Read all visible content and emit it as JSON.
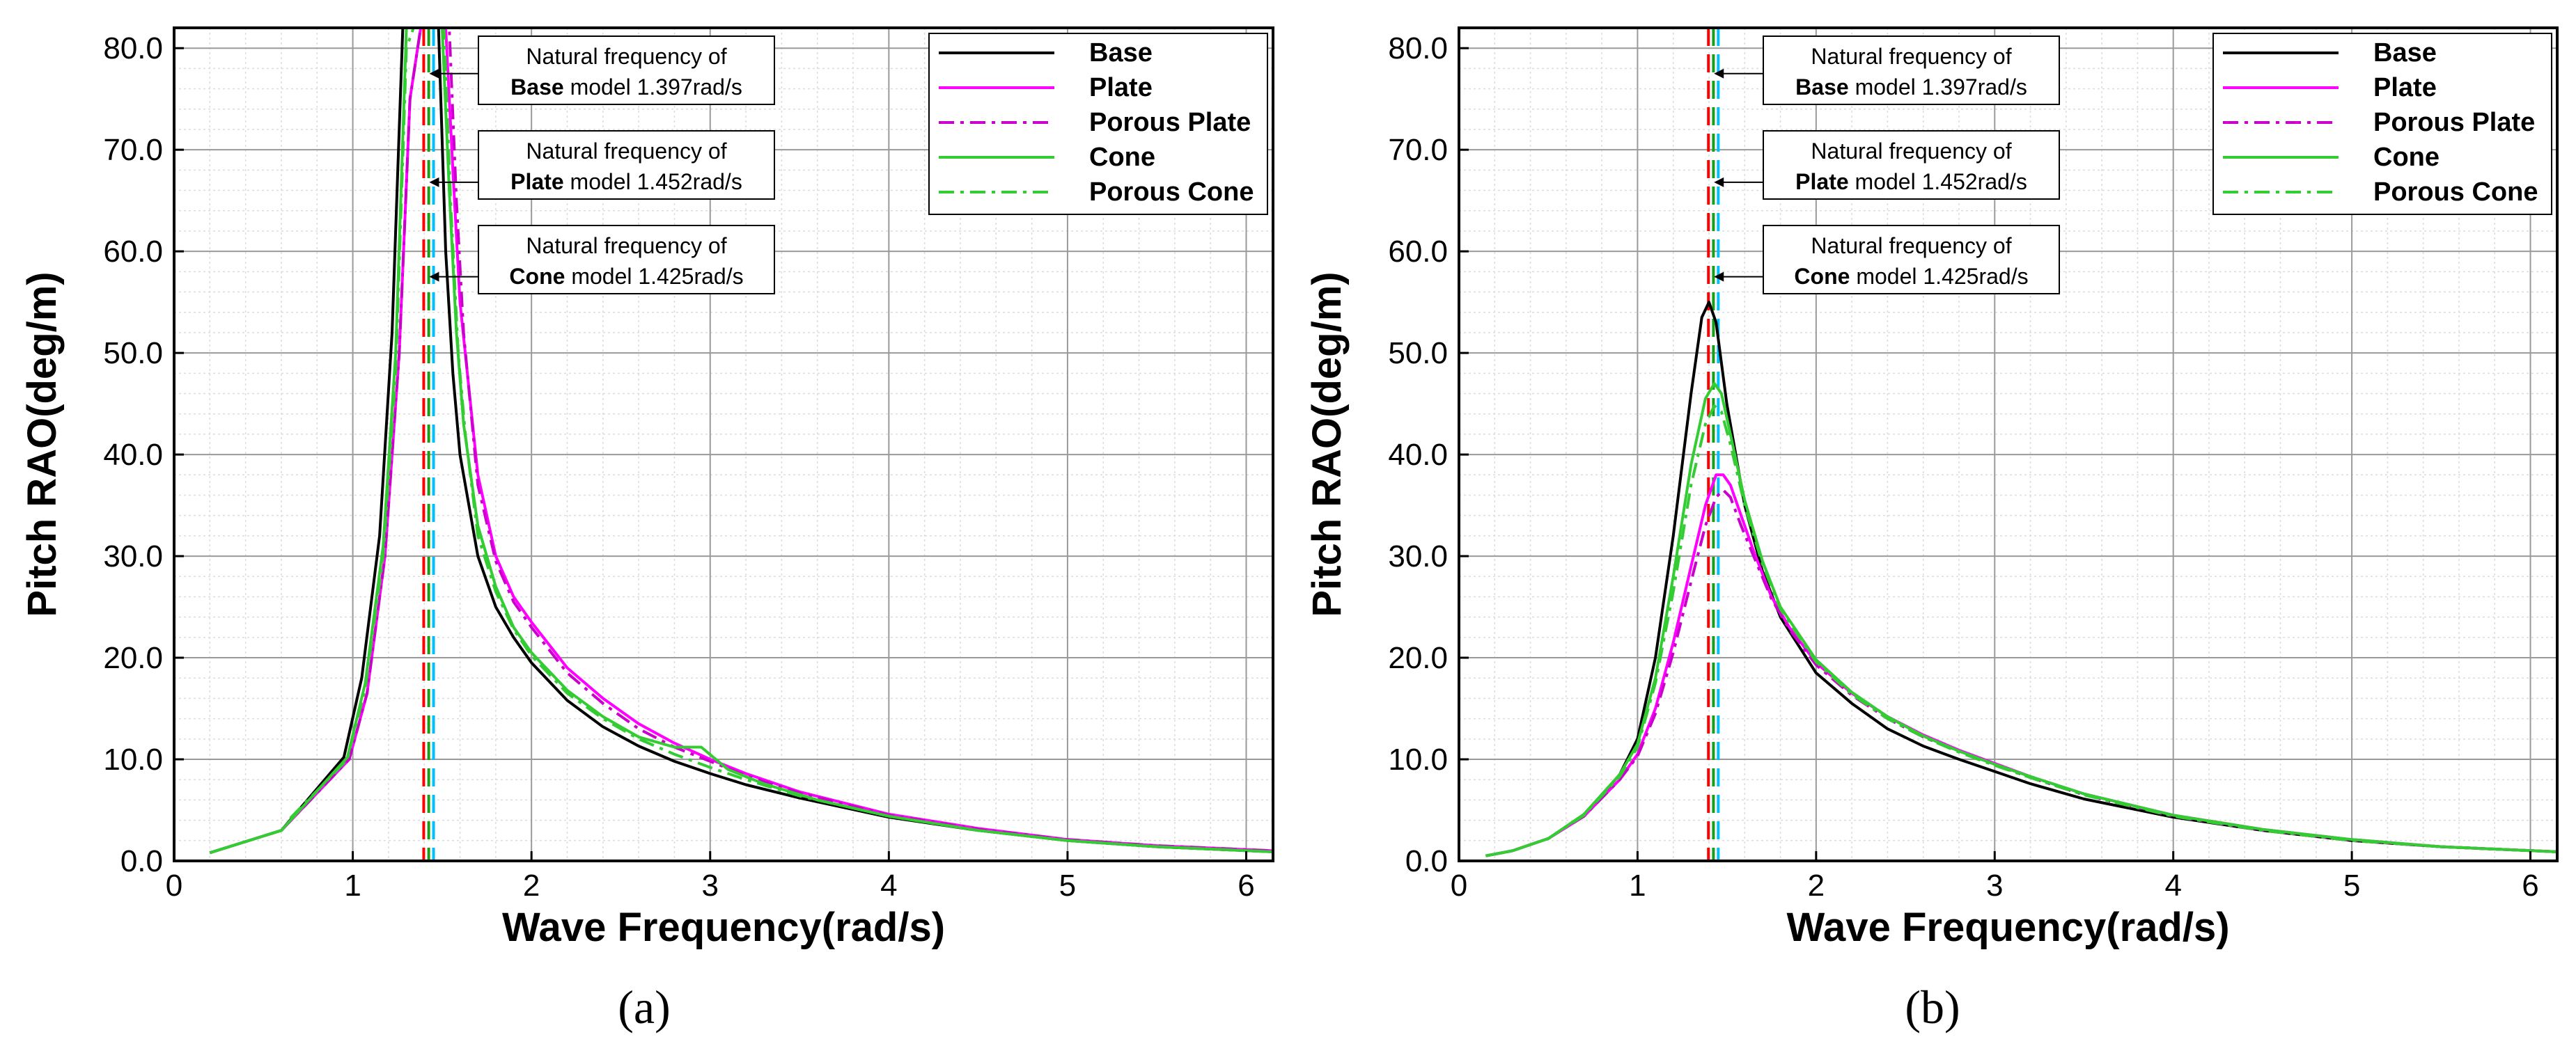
{
  "chart_data": [
    {
      "type": "line",
      "panel_label": "(a)",
      "xlabel": "Wave Frequency(rad/s)",
      "ylabel": "Pitch RAO(deg/m)",
      "xlim": [
        0,
        6.15
      ],
      "ylim": [
        0,
        82
      ],
      "xticks": [
        "0",
        "1",
        "2",
        "3",
        "4",
        "5",
        "6"
      ],
      "xtick_values": [
        0,
        1,
        2,
        3,
        4,
        5,
        6
      ],
      "yticks": [
        "0.0",
        "10.0",
        "20.0",
        "30.0",
        "40.0",
        "50.0",
        "60.0",
        "70.0",
        "80.0"
      ],
      "ytick_values": [
        0,
        10,
        20,
        30,
        40,
        50,
        60,
        70,
        80
      ],
      "grid": true,
      "legend_position": "top-right",
      "series": [
        {
          "name": "Base",
          "color": "#000000",
          "dash": "solid",
          "x": [
            0.2,
            0.6,
            0.95,
            1.05,
            1.15,
            1.22,
            1.28,
            1.32,
            1.36,
            1.397,
            1.44,
            1.48,
            1.52,
            1.56,
            1.6,
            1.7,
            1.8,
            1.9,
            2.0,
            2.2,
            2.4,
            2.6,
            2.8,
            3.0,
            3.2,
            3.5,
            4.0,
            4.5,
            5.0,
            5.5,
            6.15
          ],
          "y": [
            0.8,
            3.0,
            10.2,
            18.0,
            32.0,
            52.0,
            82.0,
            82.0,
            82.0,
            82.0,
            82.0,
            82.0,
            60.0,
            48.0,
            40.0,
            30.0,
            25.0,
            22.0,
            19.5,
            15.8,
            13.2,
            11.3,
            9.8,
            8.6,
            7.5,
            6.2,
            4.3,
            3.0,
            2.0,
            1.4,
            0.9
          ]
        },
        {
          "name": "Plate",
          "color": "#ff00ff",
          "dash": "solid",
          "x": [
            0.6,
            0.98,
            1.08,
            1.18,
            1.26,
            1.32,
            1.38,
            1.42,
            1.452,
            1.48,
            1.52,
            1.56,
            1.6,
            1.7,
            1.8,
            1.9,
            2.0,
            2.2,
            2.4,
            2.6,
            2.8,
            3.0,
            3.2,
            3.5,
            4.0,
            4.5,
            5.0,
            5.5,
            6.15
          ],
          "y": [
            3.0,
            10.0,
            16.5,
            30.0,
            50.0,
            75.0,
            82.0,
            82.0,
            82.0,
            82.0,
            82.0,
            68.0,
            55.0,
            38.0,
            30.0,
            26.0,
            23.5,
            19.0,
            16.0,
            13.5,
            11.6,
            10.0,
            8.6,
            6.8,
            4.6,
            3.2,
            2.1,
            1.5,
            1.0
          ]
        },
        {
          "name": "Porous Plate",
          "color": "#cc00cc",
          "dash": "dashdot",
          "x": [
            0.6,
            0.98,
            1.08,
            1.18,
            1.26,
            1.32,
            1.38,
            1.42,
            1.46,
            1.5,
            1.54,
            1.58,
            1.62,
            1.7,
            1.8,
            1.9,
            2.0,
            2.2,
            2.4,
            2.6,
            2.8,
            3.0,
            3.2,
            3.5,
            4.0,
            4.5,
            5.0,
            5.5,
            6.15
          ],
          "y": [
            3.0,
            10.0,
            16.5,
            30.0,
            50.0,
            75.0,
            82.0,
            82.0,
            82.0,
            82.0,
            82.0,
            65.0,
            52.0,
            37.0,
            29.5,
            25.5,
            23.0,
            18.5,
            15.5,
            13.0,
            11.2,
            9.8,
            8.4,
            6.7,
            4.5,
            3.1,
            2.1,
            1.5,
            1.0
          ]
        },
        {
          "name": "Cone",
          "color": "#33cc33",
          "dash": "solid",
          "x": [
            0.2,
            0.6,
            0.97,
            1.07,
            1.17,
            1.24,
            1.3,
            1.34,
            1.38,
            1.425,
            1.46,
            1.5,
            1.54,
            1.58,
            1.62,
            1.7,
            1.8,
            1.9,
            2.0,
            2.2,
            2.4,
            2.6,
            2.8,
            2.95,
            3.1,
            3.3,
            3.6,
            4.0,
            4.5,
            5.0,
            5.5,
            6.15
          ],
          "y": [
            0.8,
            3.0,
            10.2,
            17.5,
            31.0,
            50.0,
            82.0,
            82.0,
            82.0,
            82.0,
            82.0,
            82.0,
            66.0,
            52.0,
            43.0,
            33.0,
            27.0,
            23.0,
            20.5,
            16.8,
            14.2,
            12.2,
            11.2,
            11.2,
            9.0,
            7.6,
            6.0,
            4.4,
            3.0,
            2.0,
            1.4,
            0.9
          ]
        },
        {
          "name": "Porous Cone",
          "color": "#33cc33",
          "dash": "dashdot",
          "x": [
            0.65,
            0.97,
            1.07,
            1.17,
            1.24,
            1.3,
            1.34,
            1.38,
            1.43,
            1.47,
            1.51,
            1.55,
            1.59,
            1.63,
            1.7,
            1.8,
            1.9,
            2.0,
            2.2,
            2.4,
            2.6,
            2.8,
            3.0,
            3.2,
            3.5,
            4.0,
            4.5,
            5.0,
            5.5,
            6.15
          ],
          "y": [
            4.2,
            10.0,
            17.0,
            30.0,
            48.0,
            80.0,
            82.0,
            82.0,
            82.0,
            82.0,
            82.0,
            64.0,
            50.0,
            42.0,
            32.0,
            26.5,
            22.8,
            20.2,
            16.5,
            14.0,
            12.0,
            10.5,
            9.2,
            8.0,
            6.4,
            4.4,
            3.0,
            2.0,
            1.4,
            0.9
          ]
        }
      ],
      "vlines": [
        {
          "x": 1.397,
          "color": "#ff0000"
        },
        {
          "x": 1.425,
          "color": "#1a9e1a"
        },
        {
          "x": 1.452,
          "color": "#00bfff"
        }
      ],
      "annotations": [
        {
          "line1": "Natural frequency of",
          "bold": "Base",
          "rest": " model 1.397rad/s",
          "arrow_y": 77.5
        },
        {
          "line1": "Natural frequency of",
          "bold": "Plate",
          "rest": " model 1.452rad/s",
          "arrow_y": 66.8
        },
        {
          "line1": "Natural frequency of",
          "bold": "Cone",
          "rest": " model 1.425rad/s",
          "arrow_y": 57.5
        }
      ]
    },
    {
      "type": "line",
      "panel_label": "(b)",
      "xlabel": "Wave Frequency(rad/s)",
      "ylabel": "Pitch RAO(deg/m)",
      "xlim": [
        0,
        6.15
      ],
      "ylim": [
        0,
        82
      ],
      "xticks": [
        "0",
        "1",
        "2",
        "3",
        "4",
        "5",
        "6"
      ],
      "xtick_values": [
        0,
        1,
        2,
        3,
        4,
        5,
        6
      ],
      "yticks": [
        "0.0",
        "10.0",
        "20.0",
        "30.0",
        "40.0",
        "50.0",
        "60.0",
        "70.0",
        "80.0"
      ],
      "ytick_values": [
        0,
        10,
        20,
        30,
        40,
        50,
        60,
        70,
        80
      ],
      "grid": true,
      "legend_position": "top-right",
      "series": [
        {
          "name": "Base",
          "color": "#000000",
          "dash": "solid",
          "x": [
            0.15,
            0.3,
            0.5,
            0.7,
            0.9,
            1.0,
            1.1,
            1.2,
            1.3,
            1.36,
            1.4,
            1.44,
            1.5,
            1.6,
            1.7,
            1.8,
            2.0,
            2.2,
            2.4,
            2.6,
            2.8,
            3.0,
            3.2,
            3.5,
            4.0,
            4.5,
            5.0,
            5.5,
            6.15
          ],
          "y": [
            0.5,
            1.0,
            2.2,
            4.5,
            8.5,
            12.0,
            20.0,
            32.0,
            46.0,
            53.5,
            55.0,
            53.0,
            45.0,
            35.0,
            28.5,
            24.0,
            18.5,
            15.5,
            13.0,
            11.3,
            10.0,
            8.8,
            7.6,
            6.1,
            4.3,
            3.0,
            2.0,
            1.4,
            0.9
          ]
        },
        {
          "name": "Plate",
          "color": "#ff00ff",
          "dash": "solid",
          "x": [
            0.15,
            0.3,
            0.5,
            0.7,
            0.9,
            1.0,
            1.1,
            1.2,
            1.3,
            1.38,
            1.44,
            1.48,
            1.52,
            1.58,
            1.65,
            1.75,
            1.85,
            2.0,
            2.2,
            2.4,
            2.6,
            2.8,
            3.0,
            3.2,
            3.5,
            4.0,
            4.5,
            5.0,
            5.5,
            6.15
          ],
          "y": [
            0.5,
            1.0,
            2.2,
            4.4,
            8.0,
            10.5,
            15.0,
            21.5,
            29.0,
            35.0,
            38.0,
            38.0,
            37.0,
            34.0,
            30.5,
            26.0,
            23.0,
            19.5,
            16.5,
            14.2,
            12.4,
            10.9,
            9.6,
            8.3,
            6.6,
            4.5,
            3.1,
            2.1,
            1.4,
            0.9
          ]
        },
        {
          "name": "Porous Plate",
          "color": "#cc00cc",
          "dash": "dashdot",
          "x": [
            0.15,
            0.3,
            0.5,
            0.7,
            0.9,
            1.0,
            1.1,
            1.2,
            1.3,
            1.38,
            1.44,
            1.48,
            1.52,
            1.58,
            1.65,
            1.75,
            1.85,
            2.0,
            2.2,
            2.4,
            2.6,
            2.8,
            3.0,
            3.2,
            3.5,
            4.0,
            4.5,
            5.0,
            5.5,
            6.15
          ],
          "y": [
            0.5,
            1.0,
            2.2,
            4.4,
            8.0,
            10.3,
            14.5,
            20.5,
            27.5,
            33.0,
            35.8,
            36.5,
            35.8,
            33.0,
            30.0,
            25.8,
            22.8,
            19.3,
            16.3,
            14.0,
            12.2,
            10.8,
            9.5,
            8.2,
            6.5,
            4.4,
            3.0,
            2.0,
            1.4,
            0.9
          ]
        },
        {
          "name": "Cone",
          "color": "#33cc33",
          "dash": "solid",
          "x": [
            0.15,
            0.3,
            0.5,
            0.7,
            0.9,
            1.0,
            1.1,
            1.2,
            1.3,
            1.38,
            1.43,
            1.47,
            1.52,
            1.6,
            1.7,
            1.8,
            2.0,
            2.2,
            2.4,
            2.6,
            2.8,
            3.0,
            3.2,
            3.5,
            4.0,
            4.5,
            5.0,
            5.5,
            6.15
          ],
          "y": [
            0.5,
            1.0,
            2.2,
            4.6,
            8.5,
            11.5,
            18.0,
            28.0,
            39.0,
            45.5,
            47.0,
            46.0,
            42.0,
            35.5,
            29.5,
            25.0,
            19.8,
            16.6,
            14.2,
            12.3,
            10.8,
            9.5,
            8.3,
            6.6,
            4.5,
            3.1,
            2.1,
            1.4,
            0.9
          ]
        },
        {
          "name": "Porous Cone",
          "color": "#33cc33",
          "dash": "dashdot",
          "x": [
            0.15,
            0.3,
            0.5,
            0.7,
            0.9,
            1.0,
            1.1,
            1.2,
            1.3,
            1.38,
            1.43,
            1.47,
            1.52,
            1.6,
            1.7,
            1.8,
            2.0,
            2.2,
            2.4,
            2.6,
            2.8,
            3.0,
            3.2,
            3.5,
            4.0,
            4.5,
            5.0,
            5.5,
            6.15
          ],
          "y": [
            0.5,
            1.0,
            2.2,
            4.5,
            8.3,
            11.2,
            17.5,
            26.5,
            37.0,
            43.0,
            44.8,
            44.2,
            41.0,
            35.0,
            29.2,
            24.8,
            19.6,
            16.4,
            14.0,
            12.2,
            10.7,
            9.4,
            8.2,
            6.5,
            4.4,
            3.0,
            2.0,
            1.4,
            0.9
          ]
        }
      ],
      "vlines": [
        {
          "x": 1.397,
          "color": "#ff0000"
        },
        {
          "x": 1.425,
          "color": "#1a9e1a"
        },
        {
          "x": 1.452,
          "color": "#00bfff"
        }
      ],
      "annotations": [
        {
          "line1": "Natural frequency of",
          "bold": "Base",
          "rest": " model 1.397rad/s",
          "arrow_y": 77.5
        },
        {
          "line1": "Natural frequency of",
          "bold": "Plate",
          "rest": " model 1.452rad/s",
          "arrow_y": 66.8
        },
        {
          "line1": "Natural frequency of",
          "bold": "Cone",
          "rest": " model 1.425rad/s",
          "arrow_y": 57.5
        }
      ]
    }
  ]
}
